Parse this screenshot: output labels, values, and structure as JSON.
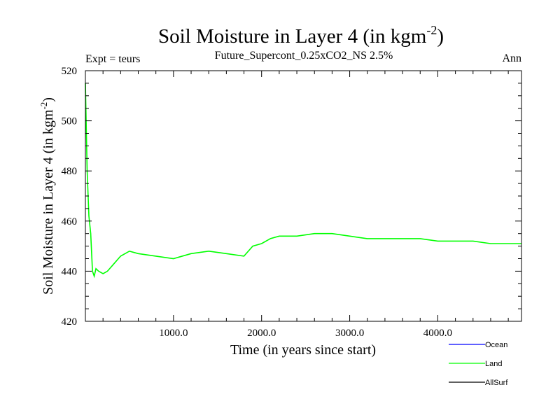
{
  "chart_data": {
    "type": "line",
    "title": "Soil Moisture in Layer 4 (in kgm",
    "title_superscript": "-2",
    "title_suffix": ")",
    "subtitle_left": "Expt = teurs",
    "subtitle_center": "Future_Supercont_0.25xCO2_NS 2.5%",
    "subtitle_right": "Ann",
    "xlabel": "Time (in years since start)",
    "ylabel": "Soil Moisture in Layer 4 (in kgm",
    "ylabel_superscript": "-2",
    "ylabel_suffix": ")",
    "xlim": [
      0,
      4950
    ],
    "ylim": [
      420,
      520
    ],
    "x_ticks": [
      1000,
      2000,
      3000,
      4000
    ],
    "x_tick_labels": [
      "1000.0",
      "2000.0",
      "3000.0",
      "4000.0"
    ],
    "y_ticks": [
      420,
      440,
      460,
      480,
      500,
      520
    ],
    "y_tick_labels": [
      "420",
      "440",
      "460",
      "480",
      "500",
      "520"
    ],
    "legend_position": "bottom-right",
    "series": [
      {
        "name": "Ocean",
        "color": "#0000ff",
        "x": [],
        "y": []
      },
      {
        "name": "Land",
        "color": "#00ff00",
        "x": [
          0,
          20,
          40,
          60,
          80,
          100,
          120,
          150,
          200,
          250,
          300,
          400,
          500,
          600,
          800,
          1000,
          1200,
          1400,
          1600,
          1800,
          1900,
          2000,
          2100,
          2200,
          2400,
          2600,
          2800,
          3000,
          3200,
          3400,
          3600,
          3800,
          4000,
          4200,
          4400,
          4600,
          4800,
          4950
        ],
        "y": [
          515,
          480,
          462,
          455,
          440,
          438,
          441,
          440,
          439,
          440,
          442,
          446,
          448,
          447,
          446,
          445,
          447,
          448,
          447,
          446,
          450,
          451,
          453,
          454,
          454,
          455,
          455,
          454,
          453,
          453,
          453,
          453,
          452,
          452,
          452,
          451,
          451,
          451
        ]
      },
      {
        "name": "AllSurf",
        "color": "#000000",
        "x": [],
        "y": []
      }
    ]
  }
}
